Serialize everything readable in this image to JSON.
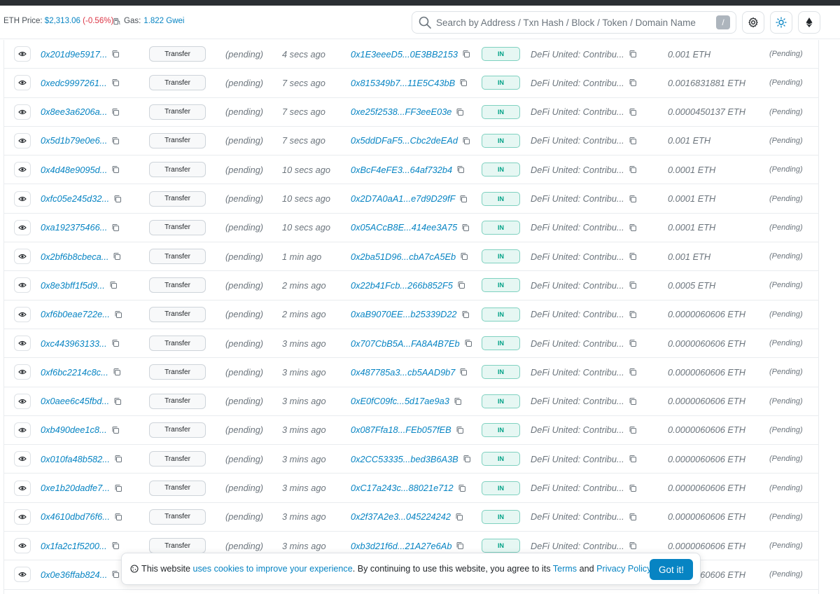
{
  "header": {
    "eth_price_label": "ETH Price: ",
    "eth_price_value": "$2,313.06",
    "eth_price_change": "(-0.56%)",
    "gas_label": "Gas: ",
    "gas_value": "1.822 Gwei",
    "search_placeholder": "Search by Address / Txn Hash / Block / Token / Domain Name",
    "search_shortcut": "/"
  },
  "transactions": [
    {
      "hash": "0x201d9e5917...",
      "method": "Transfer",
      "block": "(pending)",
      "age": "4 secs ago",
      "from": "0x1E3eeeD5...0E3BB2153",
      "direction": "IN",
      "to": "DeFi United: Contribu...",
      "value": "0.001 ETH",
      "fee": "(Pending)"
    },
    {
      "hash": "0xedc9997261...",
      "method": "Transfer",
      "block": "(pending)",
      "age": "7 secs ago",
      "from": "0x815349b7...11E5C43bB",
      "direction": "IN",
      "to": "DeFi United: Contribu...",
      "value": "0.0016831881 ETH",
      "fee": "(Pending)"
    },
    {
      "hash": "0x8ee3a6206a...",
      "method": "Transfer",
      "block": "(pending)",
      "age": "7 secs ago",
      "from": "0xe25f2538...FF3eeE03e",
      "direction": "IN",
      "to": "DeFi United: Contribu...",
      "value": "0.0000450137 ETH",
      "fee": "(Pending)"
    },
    {
      "hash": "0x5d1b79e0e6...",
      "method": "Transfer",
      "block": "(pending)",
      "age": "7 secs ago",
      "from": "0x5ddDFaF5...Cbc2deEAd",
      "direction": "IN",
      "to": "DeFi United: Contribu...",
      "value": "0.001 ETH",
      "fee": "(Pending)"
    },
    {
      "hash": "0x4d48e9095d...",
      "method": "Transfer",
      "block": "(pending)",
      "age": "10 secs ago",
      "from": "0xBcF4eFE3...64af732b4",
      "direction": "IN",
      "to": "DeFi United: Contribu...",
      "value": "0.0001 ETH",
      "fee": "(Pending)"
    },
    {
      "hash": "0xfc05e245d32...",
      "method": "Transfer",
      "block": "(pending)",
      "age": "10 secs ago",
      "from": "0x2D7A0aA1...e7d9D29fF",
      "direction": "IN",
      "to": "DeFi United: Contribu...",
      "value": "0.0001 ETH",
      "fee": "(Pending)"
    },
    {
      "hash": "0xa192375466...",
      "method": "Transfer",
      "block": "(pending)",
      "age": "10 secs ago",
      "from": "0x05ACcB8E...414ee3A75",
      "direction": "IN",
      "to": "DeFi United: Contribu...",
      "value": "0.0001 ETH",
      "fee": "(Pending)"
    },
    {
      "hash": "0x2bf6b8cbeca...",
      "method": "Transfer",
      "block": "(pending)",
      "age": "1 min ago",
      "from": "0x2ba51D96...cbA7cA5Eb",
      "direction": "IN",
      "to": "DeFi United: Contribu...",
      "value": "0.001 ETH",
      "fee": "(Pending)"
    },
    {
      "hash": "0x8e3bff1f5d9...",
      "method": "Transfer",
      "block": "(pending)",
      "age": "2 mins ago",
      "from": "0x22b41Fcb...266b852F5",
      "direction": "IN",
      "to": "DeFi United: Contribu...",
      "value": "0.0005 ETH",
      "fee": "(Pending)"
    },
    {
      "hash": "0xf6b0eae722e...",
      "method": "Transfer",
      "block": "(pending)",
      "age": "2 mins ago",
      "from": "0xaB9070EE...b25339D22",
      "direction": "IN",
      "to": "DeFi United: Contribu...",
      "value": "0.0000060606 ETH",
      "fee": "(Pending)"
    },
    {
      "hash": "0xc443963133...",
      "method": "Transfer",
      "block": "(pending)",
      "age": "3 mins ago",
      "from": "0x707CbB5A...FA8A4B7Eb",
      "direction": "IN",
      "to": "DeFi United: Contribu...",
      "value": "0.0000060606 ETH",
      "fee": "(Pending)"
    },
    {
      "hash": "0xf6bc2214c8c...",
      "method": "Transfer",
      "block": "(pending)",
      "age": "3 mins ago",
      "from": "0x487785a3...cb5AAD9b7",
      "direction": "IN",
      "to": "DeFi United: Contribu...",
      "value": "0.0000060606 ETH",
      "fee": "(Pending)"
    },
    {
      "hash": "0x0aee6c45fbd...",
      "method": "Transfer",
      "block": "(pending)",
      "age": "3 mins ago",
      "from": "0xE0fC09fc...5d17ae9a3",
      "direction": "IN",
      "to": "DeFi United: Contribu...",
      "value": "0.0000060606 ETH",
      "fee": "(Pending)"
    },
    {
      "hash": "0xb490dee1c8...",
      "method": "Transfer",
      "block": "(pending)",
      "age": "3 mins ago",
      "from": "0x087Ffa18...FEb057fEB",
      "direction": "IN",
      "to": "DeFi United: Contribu...",
      "value": "0.0000060606 ETH",
      "fee": "(Pending)"
    },
    {
      "hash": "0x010fa48b582...",
      "method": "Transfer",
      "block": "(pending)",
      "age": "3 mins ago",
      "from": "0x2CC53335...bed3B6A3B",
      "direction": "IN",
      "to": "DeFi United: Contribu...",
      "value": "0.0000060606 ETH",
      "fee": "(Pending)"
    },
    {
      "hash": "0xe1b20dadfe7...",
      "method": "Transfer",
      "block": "(pending)",
      "age": "3 mins ago",
      "from": "0xC17a243c...88021e712",
      "direction": "IN",
      "to": "DeFi United: Contribu...",
      "value": "0.0000060606 ETH",
      "fee": "(Pending)"
    },
    {
      "hash": "0x4610dbd76f6...",
      "method": "Transfer",
      "block": "(pending)",
      "age": "3 mins ago",
      "from": "0x2f37A2e3...045224242",
      "direction": "IN",
      "to": "DeFi United: Contribu...",
      "value": "0.0000060606 ETH",
      "fee": "(Pending)"
    },
    {
      "hash": "0x1fa2c1f5200...",
      "method": "Transfer",
      "block": "(pending)",
      "age": "3 mins ago",
      "from": "0xb3d21f6d...21A27e6Ab",
      "direction": "IN",
      "to": "DeFi United: Contribu...",
      "value": "0.0000060606 ETH",
      "fee": "(Pending)"
    },
    {
      "hash": "0x0e36ffab824...",
      "method": "Transfer",
      "block": "(pending)",
      "age": "3 mins ago",
      "from": "",
      "direction": "IN",
      "to": "",
      "value": "0.0000060606 ETH",
      "fee": "(Pending)"
    }
  ],
  "cookie_banner": {
    "text_1": "This website ",
    "link_1": "uses cookies to improve your experience",
    "text_2": ". By continuing to use this website, you agree to its ",
    "link_2": "Terms",
    "text_3": " and ",
    "link_3": "Privacy Policy",
    "text_4": ".",
    "button": "Got it!"
  },
  "colors": {
    "link": "#0784c3",
    "negative": "#dc3545",
    "in_badge_bg": "#e6f7f3",
    "in_badge_text": "#00a186",
    "button_primary": "#0784c3"
  },
  "icons": [
    "gas-pump-icon",
    "search-icon",
    "gear-icon",
    "sun-icon",
    "ethereum-icon",
    "eye-icon",
    "copy-icon",
    "cookie-icon"
  ]
}
